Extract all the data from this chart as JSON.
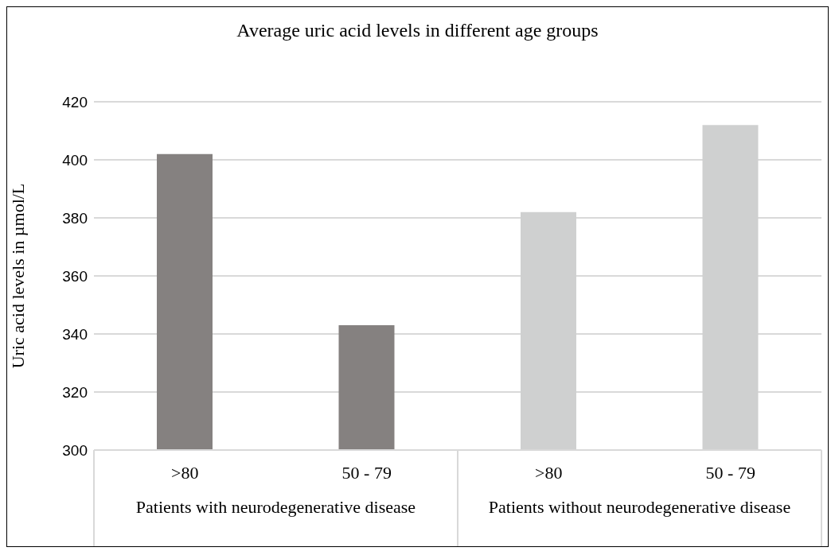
{
  "chart_data": {
    "type": "bar",
    "title": "Average uric acid levels in different age groups",
    "ylabel": "Uric acid levels in µmol/L",
    "categories": [
      ">80",
      "50 - 79",
      ">80",
      "50 - 79"
    ],
    "values": [
      402,
      343,
      382,
      412
    ],
    "colors": [
      "#858180",
      "#858180",
      "#cfd0d0",
      "#cfd0d0"
    ],
    "annotations": [
      "Patients with neurodegenerative disease",
      "Patients without neurodegenerative disease"
    ],
    "ylim": [
      300,
      420
    ],
    "yticks": [
      300,
      320,
      340,
      360,
      380,
      400,
      420
    ],
    "grid": "y"
  }
}
